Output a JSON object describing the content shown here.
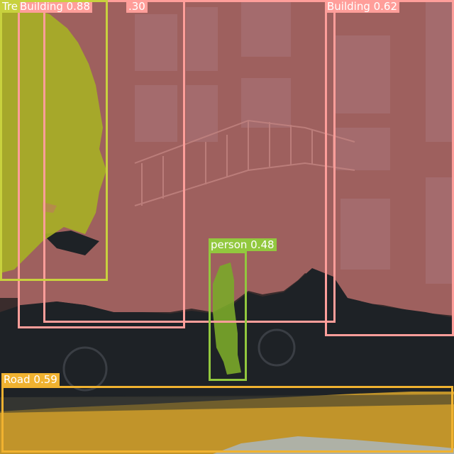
{
  "detections": {
    "tree": {
      "label": "Tre"
    },
    "building_1": {
      "label": "Building  0.88"
    },
    "building_1_trail": {
      "label": ".30"
    },
    "building_2": {
      "label": "Building  0.62"
    },
    "person": {
      "label": "person  0.48"
    },
    "road": {
      "label": "Road  0.59"
    }
  },
  "colors": {
    "building": "#ff9e9a",
    "tree": "#c8d13e",
    "person": "#92c83e",
    "road": "#f0b230"
  }
}
